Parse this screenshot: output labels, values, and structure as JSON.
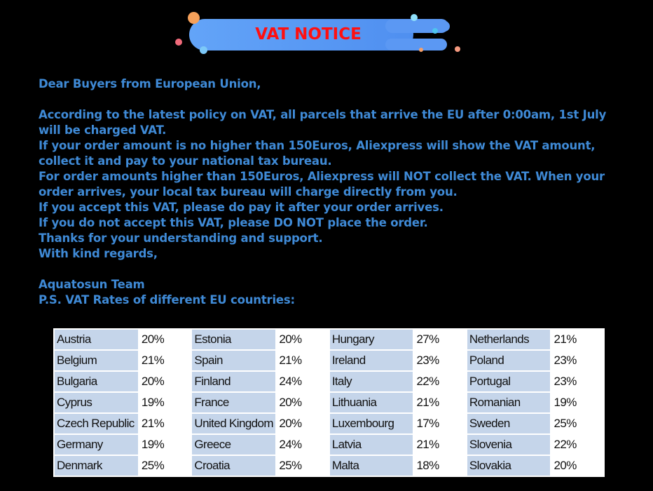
{
  "banner": {
    "title": "VAT NOTICE"
  },
  "letter": {
    "lines": [
      "Dear Buyers from European Union,",
      "",
      "According to the latest policy on VAT, all parcels that arrive the EU after 0:00am, 1st July",
      "will be charged VAT.",
      "If your order amount is no higher than 150Euros, Aliexpress will show the VAT amount,",
      "collect it and pay to your national tax bureau.",
      "For order amounts higher than 150Euros, Aliexpress will NOT collect the VAT. When your",
      "order arrives, your local tax bureau will charge directly from you.",
      "If you accept this VAT, please do pay it after your order arrives.",
      "If you do not accept this VAT, please DO NOT place the order.",
      "Thanks for your understanding and support.",
      "With kind regards,",
      "",
      "Aquatosun Team",
      "P.S. VAT Rates of different EU countries:"
    ]
  },
  "vat_table": {
    "rows": [
      [
        [
          "Austria",
          "20%"
        ],
        [
          "Estonia",
          "20%"
        ],
        [
          "Hungary",
          "27%"
        ],
        [
          "Netherlands",
          "21%"
        ]
      ],
      [
        [
          "Belgium",
          "21%"
        ],
        [
          "Spain",
          "21%"
        ],
        [
          "Ireland",
          "23%"
        ],
        [
          "Poland",
          "23%"
        ]
      ],
      [
        [
          "Bulgaria",
          "20%"
        ],
        [
          "Finland",
          "24%"
        ],
        [
          "Italy",
          "22%"
        ],
        [
          "Portugal",
          "23%"
        ]
      ],
      [
        [
          "Cyprus",
          "19%"
        ],
        [
          "France",
          "20%"
        ],
        [
          "Lithuania",
          "21%"
        ],
        [
          "Romanian",
          "19%"
        ]
      ],
      [
        [
          "Czech Republic",
          "21%"
        ],
        [
          "United Kingdom",
          "20%"
        ],
        [
          "Luxembourg",
          "17%"
        ],
        [
          "Sweden",
          "25%"
        ]
      ],
      [
        [
          "Germany",
          "19%"
        ],
        [
          "Greece",
          "24%"
        ],
        [
          "Latvia",
          "21%"
        ],
        [
          "Slovenia",
          "22%"
        ]
      ],
      [
        [
          "Denmark",
          "25%"
        ],
        [
          "Croatia",
          "25%"
        ],
        [
          "Malta",
          "18%"
        ],
        [
          "Slovakia",
          "20%"
        ]
      ]
    ]
  },
  "colors": {
    "text": "#3f8ad6",
    "title": "#ff1010",
    "banner": "#5b98f3",
    "cell_name": "#c5d5ea"
  }
}
